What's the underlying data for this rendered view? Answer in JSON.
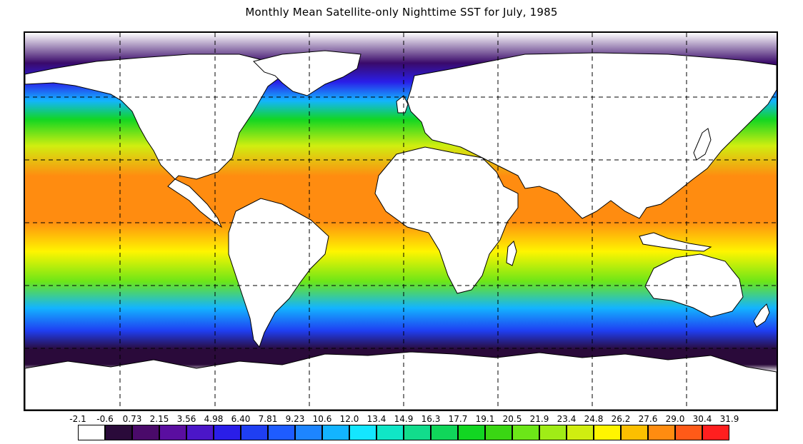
{
  "title": "Monthly Mean Satellite-only Nighttime SST for July, 1985",
  "map": {
    "land_color": "#ffffff",
    "coastline_color": "#000000",
    "gridline_style": "dashed",
    "ice_color": "#2a0a3a"
  },
  "colorbar": {
    "labels": [
      "-2.1",
      "-0.6",
      "0.73",
      "2.15",
      "3.56",
      "4.98",
      "6.40",
      "7.81",
      "9.23",
      "10.6",
      "12.0",
      "13.4",
      "14.9",
      "16.3",
      "17.7",
      "19.1",
      "20.5",
      "21.9",
      "23.4",
      "24.8",
      "26.2",
      "27.6",
      "29.0",
      "30.4",
      "31.9"
    ],
    "colors": [
      "#ffffff",
      "#2a0a3a",
      "#4a0a6a",
      "#5a0ea0",
      "#4b16c8",
      "#2a1ee8",
      "#1f3ff2",
      "#1e5cff",
      "#1d85ff",
      "#13b4ff",
      "#14e6ff",
      "#10e6c6",
      "#12dc8c",
      "#10d65a",
      "#12d622",
      "#3ad613",
      "#6ce618",
      "#a0ec16",
      "#d0ee10",
      "#fff500",
      "#fcbf00",
      "#ff8c10",
      "#ff5a18",
      "#ff1f1f"
    ]
  }
}
